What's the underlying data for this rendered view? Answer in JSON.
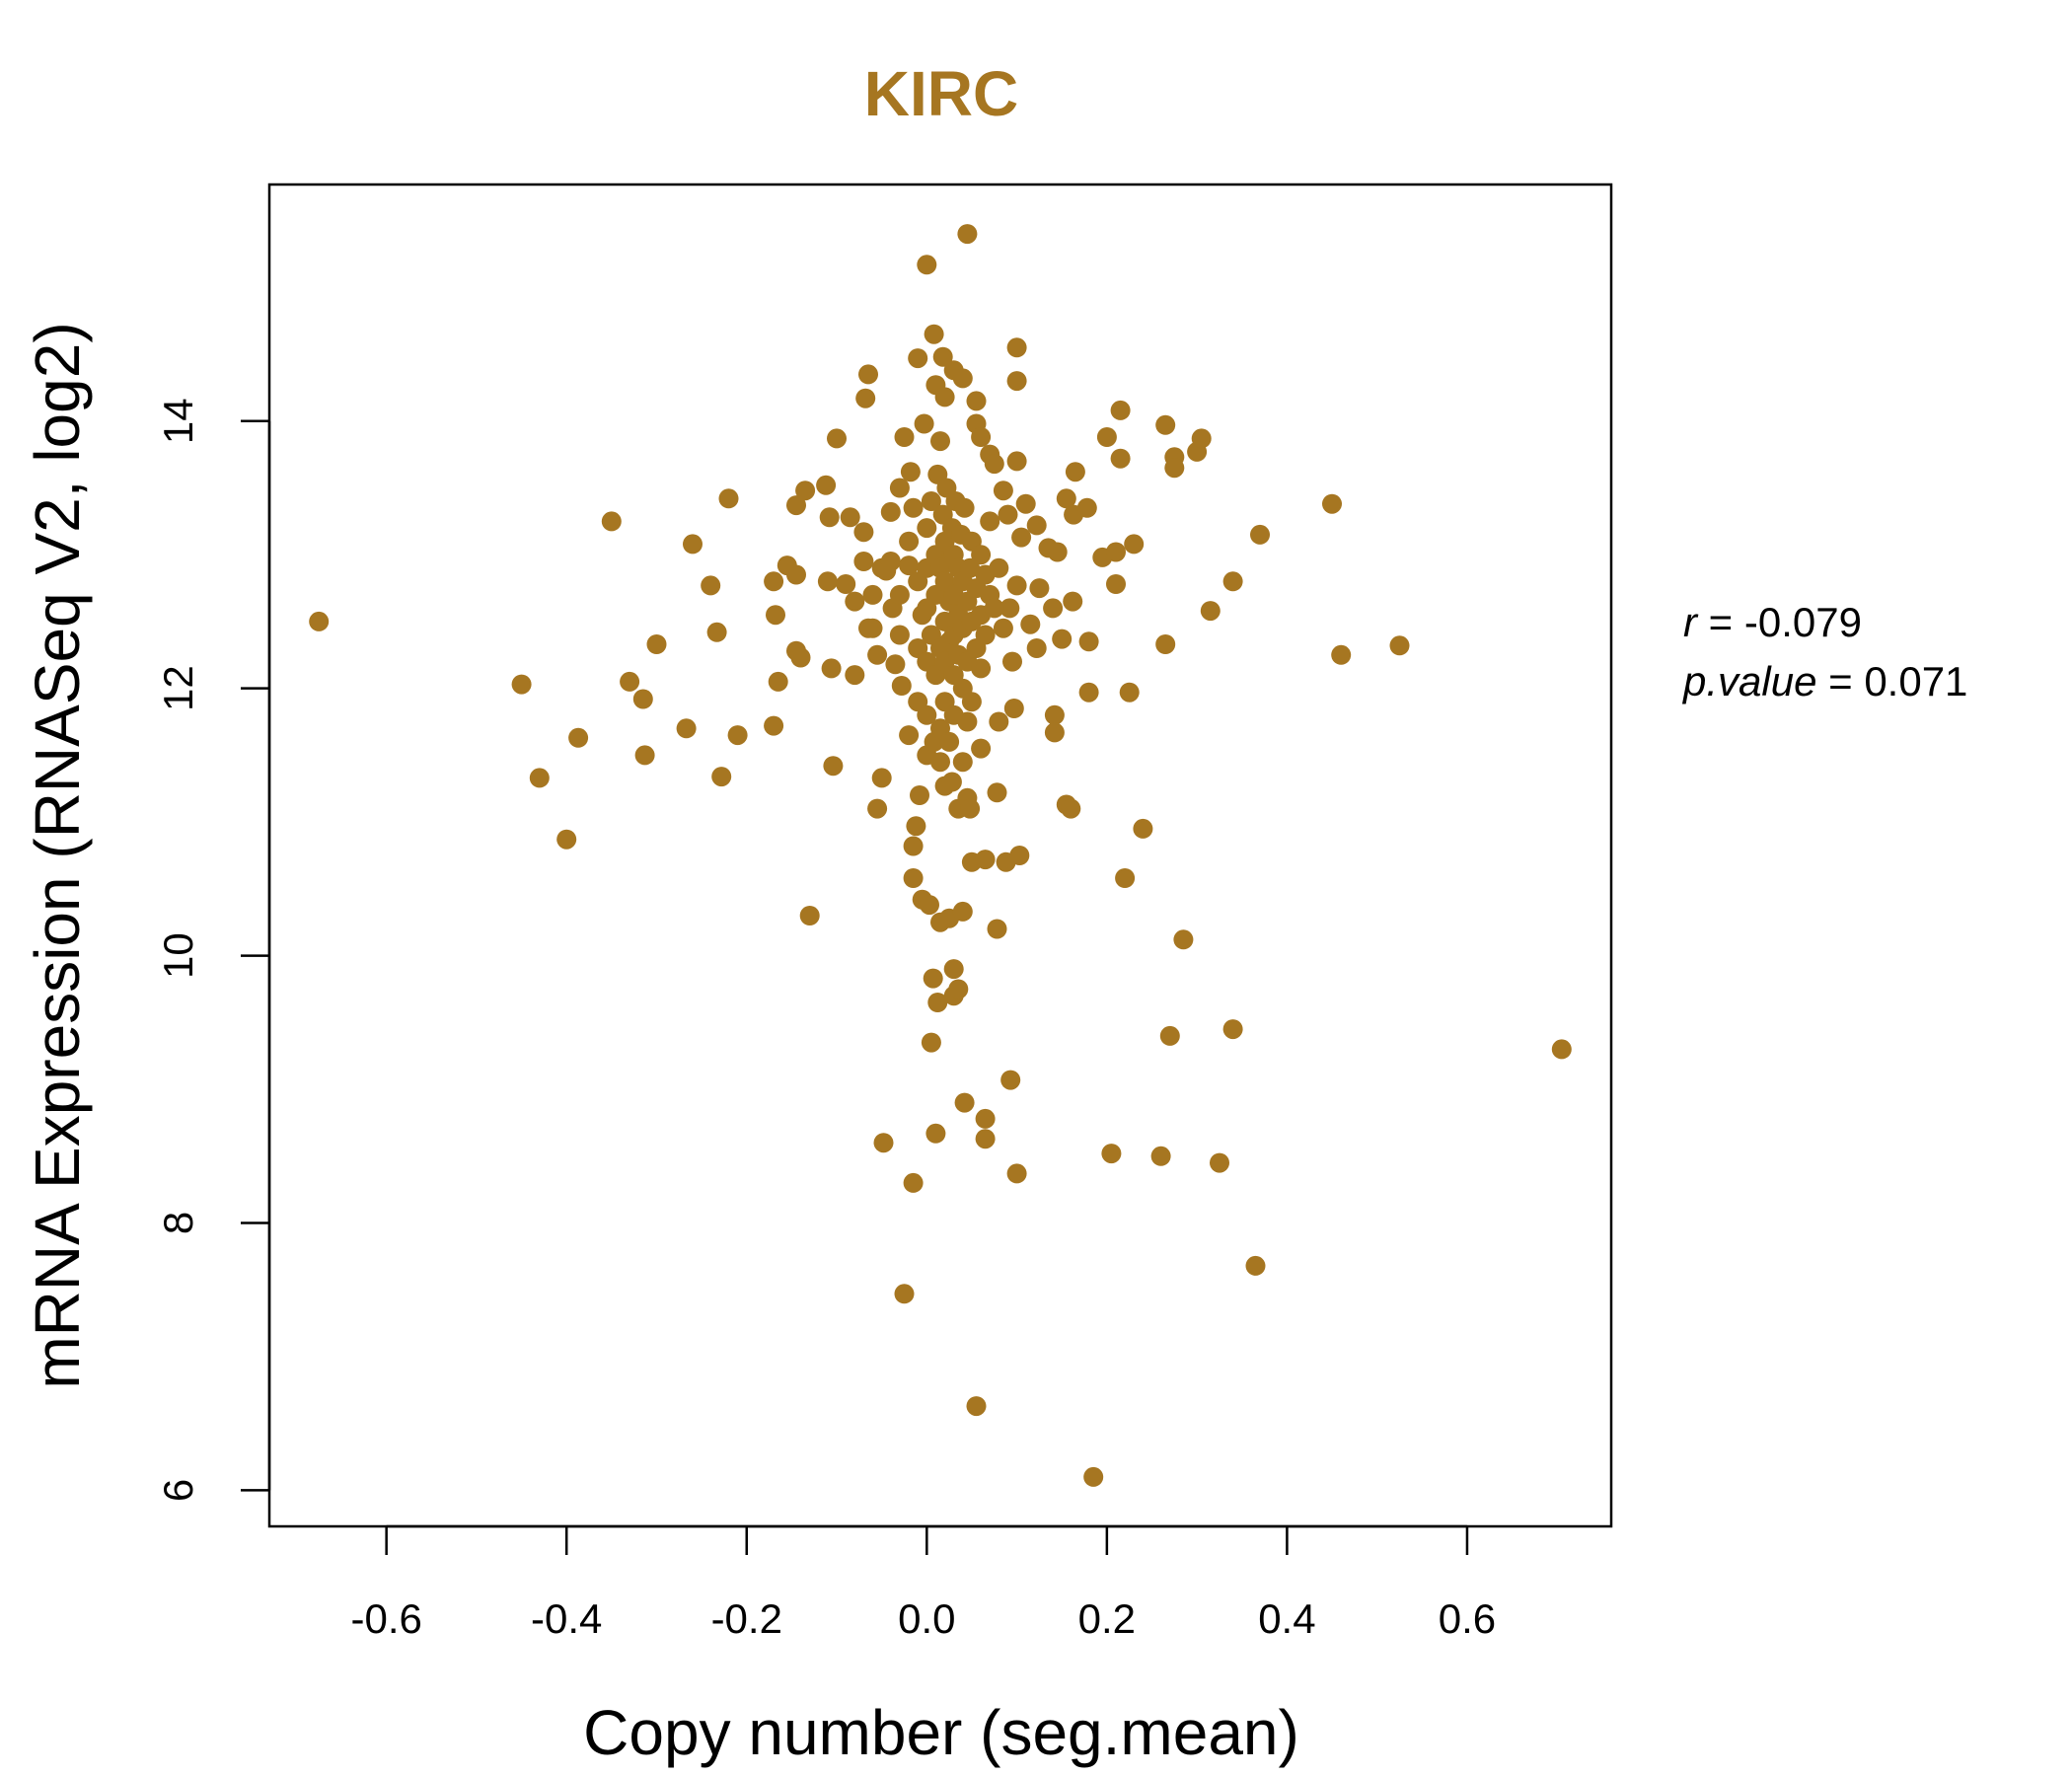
{
  "chart_data": {
    "type": "scatter",
    "title": "KIRC",
    "xlabel": "Copy number (seg.mean)",
    "ylabel": "mRNA Expression (RNASeq V2, log2)",
    "xlim": [
      -0.73,
      0.76
    ],
    "ylim": [
      5.73,
      15.77
    ],
    "xticks": [
      "-0.6",
      "-0.4",
      "-0.2",
      "0.0",
      "0.2",
      "0.4",
      "0.6"
    ],
    "xtick_values": [
      -0.6,
      -0.4,
      -0.2,
      0.0,
      0.2,
      0.4,
      0.6
    ],
    "yticks": [
      "6",
      "8",
      "10",
      "12",
      "14"
    ],
    "ytick_values": [
      6,
      8,
      10,
      12,
      14
    ],
    "grid": false,
    "legend": "none",
    "point_color": "#A67621",
    "title_color": "#A67621",
    "stats": {
      "r_label": "r",
      "r_value": "-0.079",
      "p_label": "p.value",
      "p_value": "0.071"
    },
    "points": [
      [
        -0.675,
        12.5
      ],
      [
        -0.45,
        12.03
      ],
      [
        -0.43,
        11.33
      ],
      [
        -0.4,
        10.87
      ],
      [
        -0.387,
        11.63
      ],
      [
        -0.35,
        13.25
      ],
      [
        -0.33,
        12.05
      ],
      [
        -0.315,
        11.92
      ],
      [
        -0.313,
        11.5
      ],
      [
        -0.3,
        12.33
      ],
      [
        -0.267,
        11.7
      ],
      [
        -0.26,
        13.08
      ],
      [
        -0.24,
        12.77
      ],
      [
        -0.233,
        12.42
      ],
      [
        -0.228,
        11.34
      ],
      [
        -0.22,
        13.42
      ],
      [
        -0.21,
        11.65
      ],
      [
        -0.17,
        12.8
      ],
      [
        -0.17,
        11.72
      ],
      [
        -0.168,
        12.55
      ],
      [
        -0.165,
        12.05
      ],
      [
        -0.155,
        12.92
      ],
      [
        -0.145,
        13.37
      ],
      [
        -0.145,
        12.85
      ],
      [
        -0.145,
        12.28
      ],
      [
        -0.14,
        12.23
      ],
      [
        -0.135,
        13.48
      ],
      [
        -0.13,
        10.3
      ],
      [
        -0.112,
        13.52
      ],
      [
        -0.11,
        12.8
      ],
      [
        -0.108,
        13.28
      ],
      [
        -0.106,
        12.15
      ],
      [
        -0.104,
        11.42
      ],
      [
        -0.1,
        13.87
      ],
      [
        -0.09,
        12.78
      ],
      [
        -0.085,
        13.28
      ],
      [
        -0.08,
        12.65
      ],
      [
        -0.08,
        12.1
      ],
      [
        -0.07,
        13.17
      ],
      [
        -0.068,
        14.17
      ],
      [
        -0.065,
        14.35
      ],
      [
        -0.06,
        12.45
      ],
      [
        -0.055,
        12.25
      ],
      [
        -0.055,
        11.1
      ],
      [
        -0.05,
        11.33
      ],
      [
        -0.048,
        8.6
      ],
      [
        -0.045,
        12.88
      ],
      [
        -0.04,
        13.32
      ],
      [
        -0.038,
        12.6
      ],
      [
        -0.035,
        12.18
      ],
      [
        -0.03,
        13.5
      ],
      [
        -0.028,
        12.02
      ],
      [
        -0.025,
        7.47
      ],
      [
        -0.025,
        13.88
      ],
      [
        -0.02,
        11.65
      ],
      [
        -0.02,
        12.92
      ],
      [
        -0.018,
        13.62
      ],
      [
        -0.015,
        8.3
      ],
      [
        -0.015,
        10.82
      ],
      [
        -0.015,
        10.58
      ],
      [
        -0.012,
        10.97
      ],
      [
        -0.01,
        14.47
      ],
      [
        -0.008,
        11.2
      ],
      [
        -0.005,
        10.42
      ],
      [
        -0.003,
        13.98
      ],
      [
        0.0,
        15.17
      ],
      [
        0.0,
        11.5
      ],
      [
        0.003,
        10.38
      ],
      [
        0.005,
        9.35
      ],
      [
        0.007,
        9.83
      ],
      [
        0.008,
        14.65
      ],
      [
        0.01,
        14.27
      ],
      [
        0.01,
        8.67
      ],
      [
        0.012,
        9.65
      ],
      [
        0.015,
        10.25
      ],
      [
        0.015,
        13.85
      ],
      [
        0.018,
        14.48
      ],
      [
        0.02,
        14.18
      ],
      [
        0.02,
        11.27
      ],
      [
        0.025,
        10.28
      ],
      [
        0.03,
        14.38
      ],
      [
        0.03,
        9.9
      ],
      [
        0.03,
        9.7
      ],
      [
        0.035,
        9.75
      ],
      [
        0.035,
        11.1
      ],
      [
        0.04,
        14.32
      ],
      [
        0.04,
        11.45
      ],
      [
        0.04,
        10.33
      ],
      [
        0.042,
        8.9
      ],
      [
        0.045,
        15.4
      ],
      [
        0.045,
        11.18
      ],
      [
        0.048,
        11.1
      ],
      [
        0.05,
        10.7
      ],
      [
        0.055,
        14.15
      ],
      [
        0.055,
        13.98
      ],
      [
        0.055,
        6.63
      ],
      [
        0.06,
        13.88
      ],
      [
        0.06,
        11.55
      ],
      [
        0.065,
        10.72
      ],
      [
        0.065,
        8.78
      ],
      [
        0.065,
        8.63
      ],
      [
        0.07,
        13.75
      ],
      [
        0.075,
        13.68
      ],
      [
        0.078,
        11.22
      ],
      [
        0.078,
        10.2
      ],
      [
        0.08,
        11.75
      ],
      [
        0.085,
        13.48
      ],
      [
        0.088,
        10.7
      ],
      [
        0.09,
        13.3
      ],
      [
        0.092,
        12.6
      ],
      [
        0.093,
        9.07
      ],
      [
        0.095,
        12.2
      ],
      [
        0.097,
        11.85
      ],
      [
        0.1,
        14.55
      ],
      [
        0.1,
        14.3
      ],
      [
        0.1,
        13.7
      ],
      [
        0.1,
        12.77
      ],
      [
        0.1,
        8.37
      ],
      [
        0.103,
        10.75
      ],
      [
        0.105,
        13.13
      ],
      [
        0.11,
        13.38
      ],
      [
        0.115,
        12.48
      ],
      [
        0.122,
        13.22
      ],
      [
        0.122,
        12.3
      ],
      [
        0.125,
        12.75
      ],
      [
        0.135,
        13.05
      ],
      [
        0.14,
        12.6
      ],
      [
        0.142,
        11.8
      ],
      [
        0.142,
        11.67
      ],
      [
        0.145,
        13.02
      ],
      [
        0.15,
        12.37
      ],
      [
        0.155,
        13.42
      ],
      [
        0.155,
        11.13
      ],
      [
        0.16,
        11.1
      ],
      [
        0.162,
        12.65
      ],
      [
        0.163,
        13.3
      ],
      [
        0.165,
        13.62
      ],
      [
        0.178,
        13.35
      ],
      [
        0.18,
        12.35
      ],
      [
        0.18,
        11.97
      ],
      [
        0.185,
        6.1
      ],
      [
        0.195,
        12.98
      ],
      [
        0.2,
        13.88
      ],
      [
        0.205,
        8.52
      ],
      [
        0.21,
        12.78
      ],
      [
        0.21,
        13.02
      ],
      [
        0.215,
        13.72
      ],
      [
        0.215,
        14.08
      ],
      [
        0.22,
        10.58
      ],
      [
        0.225,
        11.97
      ],
      [
        0.23,
        13.08
      ],
      [
        0.24,
        10.95
      ],
      [
        0.26,
        8.5
      ],
      [
        0.265,
        12.33
      ],
      [
        0.265,
        13.97
      ],
      [
        0.27,
        9.4
      ],
      [
        0.275,
        13.73
      ],
      [
        0.275,
        13.65
      ],
      [
        0.285,
        10.12
      ],
      [
        0.3,
        13.77
      ],
      [
        0.305,
        13.87
      ],
      [
        0.315,
        12.58
      ],
      [
        0.325,
        8.45
      ],
      [
        0.34,
        12.8
      ],
      [
        0.34,
        9.45
      ],
      [
        0.365,
        7.68
      ],
      [
        0.37,
        13.15
      ],
      [
        0.45,
        13.38
      ],
      [
        0.46,
        12.25
      ],
      [
        0.525,
        12.32
      ],
      [
        0.705,
        9.3
      ],
      [
        -0.05,
        12.9
      ],
      [
        -0.04,
        12.95
      ],
      [
        -0.03,
        12.7
      ],
      [
        -0.03,
        12.4
      ],
      [
        -0.02,
        13.1
      ],
      [
        -0.01,
        12.8
      ],
      [
        -0.01,
        12.3
      ],
      [
        -0.01,
        11.9
      ],
      [
        0.0,
        13.2
      ],
      [
        0.0,
        12.9
      ],
      [
        0.0,
        12.6
      ],
      [
        0.0,
        12.2
      ],
      [
        0.0,
        11.8
      ],
      [
        0.005,
        13.4
      ],
      [
        0.005,
        12.4
      ],
      [
        0.008,
        11.6
      ],
      [
        0.01,
        13.0
      ],
      [
        0.01,
        12.7
      ],
      [
        0.01,
        12.1
      ],
      [
        0.012,
        13.6
      ],
      [
        0.015,
        12.9
      ],
      [
        0.015,
        12.3
      ],
      [
        0.015,
        11.7
      ],
      [
        0.018,
        13.3
      ],
      [
        0.02,
        13.1
      ],
      [
        0.02,
        12.8
      ],
      [
        0.02,
        12.5
      ],
      [
        0.02,
        12.2
      ],
      [
        0.02,
        11.9
      ],
      [
        0.022,
        13.5
      ],
      [
        0.025,
        12.95
      ],
      [
        0.025,
        12.65
      ],
      [
        0.025,
        12.35
      ],
      [
        0.025,
        11.6
      ],
      [
        0.028,
        13.2
      ],
      [
        0.03,
        13.0
      ],
      [
        0.03,
        12.7
      ],
      [
        0.03,
        12.4
      ],
      [
        0.03,
        12.1
      ],
      [
        0.03,
        11.8
      ],
      [
        0.032,
        13.4
      ],
      [
        0.035,
        12.9
      ],
      [
        0.035,
        12.55
      ],
      [
        0.035,
        12.25
      ],
      [
        0.038,
        13.15
      ],
      [
        0.04,
        12.8
      ],
      [
        0.04,
        12.45
      ],
      [
        0.04,
        12.0
      ],
      [
        0.042,
        13.35
      ],
      [
        0.045,
        12.65
      ],
      [
        0.045,
        12.2
      ],
      [
        0.048,
        12.9
      ],
      [
        0.05,
        13.1
      ],
      [
        0.05,
        12.5
      ],
      [
        0.05,
        11.9
      ],
      [
        0.055,
        12.75
      ],
      [
        0.055,
        12.3
      ],
      [
        0.06,
        13.0
      ],
      [
        0.06,
        12.55
      ],
      [
        0.065,
        12.85
      ],
      [
        0.065,
        12.4
      ],
      [
        0.07,
        12.7
      ],
      [
        0.075,
        12.6
      ],
      [
        0.08,
        12.9
      ],
      [
        0.085,
        12.45
      ],
      [
        -0.06,
        12.7
      ],
      [
        -0.065,
        12.45
      ],
      [
        -0.07,
        12.95
      ],
      [
        -0.015,
        13.35
      ],
      [
        -0.005,
        12.55
      ],
      [
        0.015,
        11.45
      ],
      [
        0.028,
        11.3
      ],
      [
        0.045,
        11.75
      ],
      [
        0.06,
        12.15
      ],
      [
        0.07,
        13.25
      ]
    ]
  }
}
